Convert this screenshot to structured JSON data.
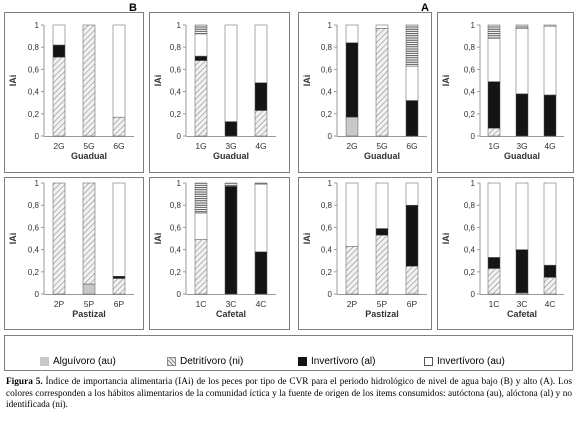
{
  "chart_data": [
    {
      "type": "bar",
      "stacked": true,
      "panel": "B",
      "title": "",
      "ylabel": "IAi",
      "xlabel": "Guadual",
      "categories": [
        "2G",
        "5G",
        "6G"
      ],
      "ylim": [
        0,
        1
      ],
      "yticks": [
        "0",
        "0,2",
        "0,4",
        "0,6",
        "0,8",
        "1"
      ],
      "series": [
        {
          "key": "au_alg",
          "values": [
            0,
            0,
            0
          ]
        },
        {
          "key": "ni_det",
          "values": [
            0.71,
            1.0,
            0.17
          ]
        },
        {
          "key": "al_inv",
          "values": [
            0.11,
            0,
            0
          ]
        },
        {
          "key": "au_inv",
          "values": [
            0.18,
            0,
            0.83
          ]
        }
      ]
    },
    {
      "type": "bar",
      "stacked": true,
      "panel": "B",
      "title": "",
      "ylabel": "IAi",
      "xlabel": "Guadual",
      "categories": [
        "1G",
        "3G",
        "4G"
      ],
      "ylim": [
        0,
        1
      ],
      "yticks": [
        "0",
        "0,2",
        "0,4",
        "0,6",
        "0,8",
        "1"
      ],
      "series": [
        {
          "key": "ni_det",
          "values": [
            0.68,
            0,
            0.23
          ]
        },
        {
          "key": "al_inv",
          "values": [
            0.04,
            0.13,
            0.25
          ]
        },
        {
          "key": "au_inv",
          "values": [
            0.2,
            0.87,
            0.52
          ]
        },
        {
          "key": "al_stripe",
          "values": [
            0.08,
            0,
            0
          ]
        }
      ]
    },
    {
      "type": "bar",
      "stacked": true,
      "panel": "A",
      "title": "",
      "ylabel": "IAi",
      "xlabel": "Guadual",
      "categories": [
        "2G",
        "5G",
        "6G"
      ],
      "ylim": [
        0,
        1
      ],
      "yticks": [
        "0",
        "0,2",
        "0,4",
        "0,6",
        "0,8",
        "1"
      ],
      "series": [
        {
          "key": "au_alg",
          "values": [
            0.17,
            0,
            0
          ]
        },
        {
          "key": "ni_det",
          "values": [
            0,
            0.97,
            0
          ]
        },
        {
          "key": "al_inv",
          "values": [
            0.67,
            0,
            0.32
          ]
        },
        {
          "key": "au_inv",
          "values": [
            0.16,
            0.03,
            0.31
          ]
        },
        {
          "key": "al_stripe",
          "values": [
            0,
            0,
            0.37
          ]
        }
      ]
    },
    {
      "type": "bar",
      "stacked": true,
      "panel": "A",
      "title": "",
      "ylabel": "IAi",
      "xlabel": "Guadual",
      "categories": [
        "1G",
        "3G",
        "4G"
      ],
      "ylim": [
        0,
        1
      ],
      "yticks": [
        "0",
        "0,2",
        "0,4",
        "0,6",
        "0,8",
        "1"
      ],
      "series": [
        {
          "key": "ni_det",
          "values": [
            0.07,
            0,
            0
          ]
        },
        {
          "key": "al_inv",
          "values": [
            0.42,
            0.38,
            0.37
          ]
        },
        {
          "key": "au_inv",
          "values": [
            0.39,
            0.59,
            0.62
          ]
        },
        {
          "key": "al_stripe",
          "values": [
            0.12,
            0.03,
            0.01
          ]
        }
      ]
    },
    {
      "type": "bar",
      "stacked": true,
      "panel": "B",
      "title": "",
      "ylabel": "IAi",
      "xlabel": "Pastizal",
      "categories": [
        "2P",
        "5P",
        "6P"
      ],
      "ylim": [
        0,
        1
      ],
      "yticks": [
        "0",
        "0,2",
        "0,4",
        "0,6",
        "0,8",
        "1"
      ],
      "series": [
        {
          "key": "au_alg",
          "values": [
            0,
            0.09,
            0
          ]
        },
        {
          "key": "ni_det",
          "values": [
            1.0,
            0.91,
            0.14
          ]
        },
        {
          "key": "al_inv",
          "values": [
            0,
            0,
            0.02
          ]
        },
        {
          "key": "au_inv",
          "values": [
            0,
            0,
            0.84
          ]
        }
      ]
    },
    {
      "type": "bar",
      "stacked": true,
      "panel": "B",
      "title": "",
      "ylabel": "IAi",
      "xlabel": "Cafetal",
      "categories": [
        "1C",
        "3C",
        "4C"
      ],
      "ylim": [
        0,
        1
      ],
      "yticks": [
        "0",
        "0,2",
        "0,4",
        "0,6",
        "0,8",
        "1"
      ],
      "series": [
        {
          "key": "ni_det",
          "values": [
            0.49,
            0,
            0
          ]
        },
        {
          "key": "al_inv",
          "values": [
            0,
            0.97,
            0.38
          ]
        },
        {
          "key": "au_inv",
          "values": [
            0.24,
            0,
            0.61
          ]
        },
        {
          "key": "al_stripe",
          "values": [
            0.27,
            0.03,
            0.01
          ]
        }
      ]
    },
    {
      "type": "bar",
      "stacked": true,
      "panel": "A",
      "title": "",
      "ylabel": "IAi",
      "xlabel": "Pastizal",
      "categories": [
        "2P",
        "5P",
        "6P"
      ],
      "ylim": [
        0,
        1
      ],
      "yticks": [
        "0",
        "0,2",
        "0,4",
        "0,6",
        "0,8",
        "1"
      ],
      "series": [
        {
          "key": "ni_det",
          "values": [
            0.43,
            0.53,
            0.25
          ]
        },
        {
          "key": "al_inv",
          "values": [
            0,
            0.06,
            0.55
          ]
        },
        {
          "key": "au_inv",
          "values": [
            0.57,
            0.41,
            0.2
          ]
        }
      ]
    },
    {
      "type": "bar",
      "stacked": true,
      "panel": "A",
      "title": "",
      "ylabel": "IAi",
      "xlabel": "Cafetal",
      "categories": [
        "1C",
        "3C",
        "4C"
      ],
      "ylim": [
        0,
        1
      ],
      "yticks": [
        "0",
        "0,2",
        "0,4",
        "0,6",
        "0,8",
        "1"
      ],
      "series": [
        {
          "key": "ni_det",
          "values": [
            0.23,
            0.01,
            0.15
          ]
        },
        {
          "key": "al_inv",
          "values": [
            0.1,
            0.39,
            0.11
          ]
        },
        {
          "key": "au_inv",
          "values": [
            0.67,
            0.6,
            0.74
          ]
        }
      ]
    }
  ],
  "panels": {
    "b": "B",
    "a": "A"
  },
  "legend": [
    {
      "key": "au_alg",
      "label": "Alguívoro (au)"
    },
    {
      "key": "ni_det",
      "label": "Detritívoro (ni)"
    },
    {
      "key": "al_inv",
      "label": "Invertívoro (al)"
    },
    {
      "key": "au_inv",
      "label": "Invertívoro (au)"
    }
  ],
  "colors": {
    "au_alg": "#c8c8c8",
    "ni_det_bg": "#f2f2f2",
    "ni_det_line": "#8a8a8a",
    "al_inv": "#141414",
    "au_inv": "#ffffff",
    "al_stripe_line": "#3a3a3a",
    "axis": "#999999",
    "frame": "#7f7f7f"
  },
  "caption": {
    "label": "Figura 5.",
    "text": " Índice de importancia alimentaria (IAi) de los peces por tipo de CVR para el periodo hidrológico de nivel de agua bajo (B) y alto (A). Los colores corresponden a los hábitos alimentarios de la comunidad íctica y la fuente de origen de los ítems consumidos: autóctona (au), alóctona (al) y no identificada (ni)."
  }
}
